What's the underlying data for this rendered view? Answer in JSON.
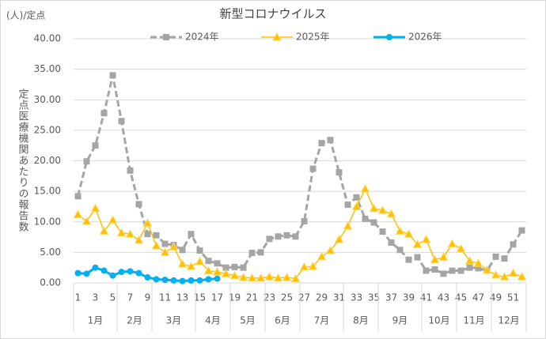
{
  "chart_data": {
    "type": "line",
    "title": "新型コロナウイルス",
    "y_unit": "(人)/定点",
    "ylabel": "定点医療機関あたりの報告数",
    "categories": [
      1,
      null,
      3,
      null,
      5,
      null,
      7,
      null,
      9,
      null,
      11,
      null,
      13,
      null,
      15,
      null,
      17,
      null,
      19,
      null,
      21,
      null,
      23,
      null,
      25,
      null,
      27,
      null,
      29,
      null,
      31,
      null,
      33,
      null,
      35,
      null,
      37,
      null,
      39,
      null,
      41,
      null,
      43,
      null,
      45,
      null,
      47,
      null,
      49,
      null,
      51,
      null
    ],
    "months": [
      {
        "label": "1月",
        "span": 5
      },
      {
        "label": "2月",
        "span": 4
      },
      {
        "label": "3月",
        "span": 5
      },
      {
        "label": "4月",
        "span": 4
      },
      {
        "label": "5月",
        "span": 4
      },
      {
        "label": "6月",
        "span": 4
      },
      {
        "label": "7月",
        "span": 5
      },
      {
        "label": "8月",
        "span": 4
      },
      {
        "label": "9月",
        "span": 5
      },
      {
        "label": "10月",
        "span": 4
      },
      {
        "label": "11月",
        "span": 4
      },
      {
        "label": "12月",
        "span": 4
      }
    ],
    "ylim": [
      0,
      40
    ],
    "yticks": [
      {
        "value": 0,
        "label": "0.00"
      },
      {
        "value": 5,
        "label": "5.00"
      },
      {
        "value": 10,
        "label": "10.00"
      },
      {
        "value": 15,
        "label": "15.00"
      },
      {
        "value": 20,
        "label": "20.00"
      },
      {
        "value": 25,
        "label": "25.00"
      },
      {
        "value": 30,
        "label": "30.00"
      },
      {
        "value": 35,
        "label": "35.00"
      },
      {
        "value": 40,
        "label": "40.00"
      }
    ],
    "grid": true,
    "legend": "top",
    "series": [
      {
        "name": "2024年",
        "color": "#a5a5a5",
        "marker": "square",
        "dash": true,
        "values": [
          14.2,
          19.9,
          22.5,
          27.8,
          34.0,
          26.5,
          18.4,
          12.9,
          8.0,
          7.8,
          6.4,
          6.2,
          5.4,
          8.0,
          5.3,
          3.6,
          3.2,
          2.5,
          2.6,
          2.5,
          4.9,
          5.0,
          7.2,
          7.6,
          7.8,
          7.6,
          10.1,
          18.7,
          22.9,
          23.4,
          18.1,
          12.8,
          14.0,
          10.5,
          9.9,
          8.4,
          6.6,
          5.4,
          3.8,
          4.2,
          2.0,
          2.2,
          1.5,
          2.0,
          2.0,
          2.5,
          2.4,
          2.0,
          4.3,
          4.0,
          6.3,
          8.6
        ]
      },
      {
        "name": "2025年",
        "color": "#ffc000",
        "marker": "triangle",
        "dash": false,
        "values": [
          11.2,
          10.1,
          12.2,
          8.5,
          10.3,
          8.2,
          8.0,
          7.0,
          9.8,
          6.1,
          5.0,
          5.9,
          3.1,
          2.7,
          3.5,
          2.0,
          1.8,
          1.5,
          1.2,
          0.9,
          0.8,
          0.8,
          1.0,
          0.8,
          0.9,
          0.7,
          2.6,
          2.7,
          4.3,
          5.3,
          7.1,
          9.3,
          12.5,
          15.4,
          12.2,
          11.9,
          11.3,
          8.5,
          8.0,
          6.3,
          7.1,
          3.8,
          4.2,
          6.4,
          5.6,
          3.6,
          3.2,
          2.1,
          1.3,
          1.0,
          1.6,
          1.0
        ]
      },
      {
        "name": "2026年",
        "color": "#00b0f0",
        "marker": "circle",
        "dash": false,
        "values": [
          1.6,
          1.5,
          2.5,
          2.0,
          1.2,
          1.8,
          1.9,
          1.6,
          0.9,
          0.6,
          0.5,
          0.4,
          0.3,
          0.4,
          0.4,
          0.6,
          0.7,
          null,
          null,
          null,
          null,
          null,
          null,
          null,
          null,
          null,
          null,
          null,
          null,
          null,
          null,
          null,
          null,
          null,
          null,
          null,
          null,
          null,
          null,
          null,
          null,
          null,
          null,
          null,
          null,
          null,
          null,
          null,
          null,
          null,
          null,
          null
        ]
      }
    ]
  }
}
